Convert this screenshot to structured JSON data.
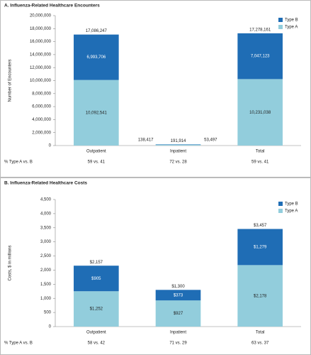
{
  "chart_data": [
    {
      "type": "bar",
      "stacked": true,
      "title": "A. Influenza-Related Healthcare Encounters",
      "y_label": "Number of Encounters",
      "categories": [
        "Outpatient",
        "Inpatient",
        "Total"
      ],
      "series": [
        {
          "name": "Type A",
          "color": "#92cddc",
          "values": [
            10092541,
            138417,
            10231038
          ],
          "value_labels": [
            "10,092,541",
            "138,417",
            "10,231,038"
          ]
        },
        {
          "name": "Type B",
          "color": "#1f6db5",
          "values": [
            6993706,
            53497,
            7047123
          ],
          "value_labels": [
            "6,993,706",
            "53,497",
            "7,047,123"
          ]
        }
      ],
      "totals": [
        17086247,
        191914,
        17278161
      ],
      "total_labels": [
        "17,086,247",
        "191,914",
        "17,278,161"
      ],
      "ylim": [
        0,
        20000000
      ],
      "yticks": [
        0,
        {
          "value": 2000000,
          "label": "2,000,000"
        },
        {
          "value": 4000000,
          "label": "4,000,000"
        },
        {
          "value": 6000000,
          "label": "6,000,000"
        },
        {
          "value": 8000000,
          "label": "8,000,000"
        },
        {
          "value": 10000000,
          "label": "10,000,000"
        },
        {
          "value": 12000000,
          "label": "12,000,000"
        },
        {
          "value": 14000000,
          "label": "14,000,000"
        },
        {
          "value": 16000000,
          "label": "16,000,000"
        },
        {
          "value": 18000000,
          "label": "18,000,000"
        },
        {
          "value": 20000000,
          "label": "20,000,000"
        }
      ],
      "row_label": "% Type A vs. B",
      "row_values": [
        "59 vs. 41",
        "72 vs. 28",
        "59 vs. 41"
      ]
    },
    {
      "type": "bar",
      "stacked": true,
      "title": "B. Influenza-Related Healthcare Costs",
      "y_label": "Costs, $ in millions",
      "categories": [
        "Outpatient",
        "Inpatient",
        "Total"
      ],
      "series": [
        {
          "name": "Type A",
          "color": "#92cddc",
          "values": [
            1252,
            927,
            2178
          ],
          "value_labels": [
            "$1,252",
            "$927",
            "$2,178"
          ]
        },
        {
          "name": "Type B",
          "color": "#1f6db5",
          "values": [
            905,
            373,
            1279
          ],
          "value_labels": [
            "$905",
            "$373",
            "$1,279"
          ]
        }
      ],
      "totals": [
        2157,
        1300,
        3457
      ],
      "total_labels": [
        "$2,157",
        "$1,300",
        "$3,457"
      ],
      "ylim": [
        0,
        4500
      ],
      "yticks": [
        0,
        500,
        {
          "value": 1000,
          "label": "1,000"
        },
        {
          "value": 1500,
          "label": "1,500"
        },
        {
          "value": 2000,
          "label": "2,000"
        },
        {
          "value": 2500,
          "label": "2,500"
        },
        {
          "value": 3000,
          "label": "3,000"
        },
        {
          "value": 3500,
          "label": "3,500"
        },
        {
          "value": 4000,
          "label": "4,000"
        },
        {
          "value": 4500,
          "label": "4,500"
        }
      ],
      "row_label": "% Type A vs. B",
      "row_values": [
        "58 vs. 42",
        "71 vs. 29",
        "63 vs. 37"
      ]
    }
  ]
}
